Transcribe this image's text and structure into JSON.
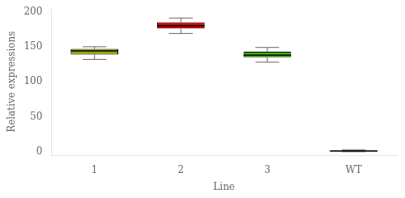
{
  "chart_data": {
    "type": "box",
    "xlabel": "Line",
    "ylabel": "Relative expressions",
    "categories": [
      "1",
      "2",
      "3",
      "WT"
    ],
    "q1": [
      139,
      176,
      135,
      0.5
    ],
    "median": [
      144,
      180,
      138,
      1.2
    ],
    "q3": [
      147,
      185,
      143,
      2.0
    ],
    "whisker_low": [
      132,
      169,
      128,
      0.1
    ],
    "whisker_high": [
      150,
      191,
      149,
      3.0
    ],
    "colors": [
      "#9aaa00",
      "#dd0000",
      "#33bb00",
      "#111111"
    ],
    "ylim": [
      -5,
      205
    ],
    "yticks": [
      0,
      50,
      100,
      150,
      200
    ],
    "grid": false
  }
}
